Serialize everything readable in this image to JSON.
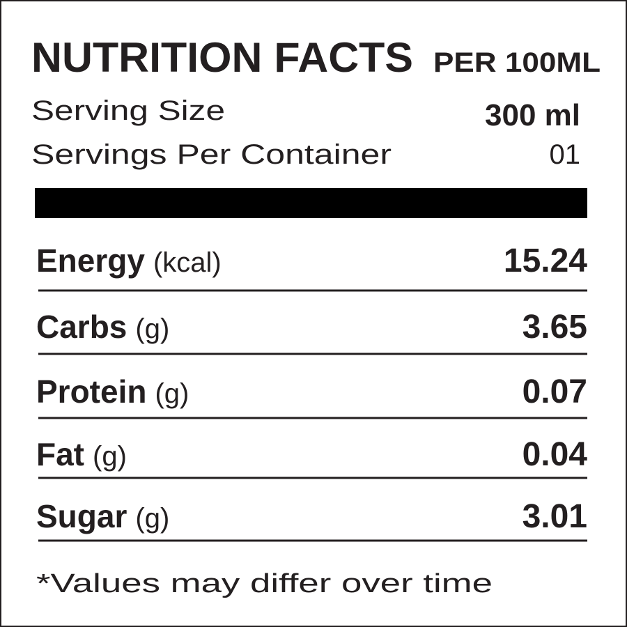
{
  "header": {
    "title": "NUTRITION FACTS",
    "basis": "PER 100ML"
  },
  "serving": [
    {
      "label": "Serving Size",
      "value": "300 ml"
    },
    {
      "label": "Servings Per Container",
      "value": "01"
    }
  ],
  "nutrients": [
    {
      "name": "Energy",
      "unit": "(kcal)",
      "value": "15.24"
    },
    {
      "name": "Carbs",
      "unit": "(g)",
      "value": "3.65"
    },
    {
      "name": "Protein",
      "unit": "(g)",
      "value": "0.07"
    },
    {
      "name": "Fat",
      "unit": "(g)",
      "value": "0.04"
    },
    {
      "name": "Sugar",
      "unit": "(g)",
      "value": "3.01"
    }
  ],
  "footnote": "*Values may differ over time"
}
